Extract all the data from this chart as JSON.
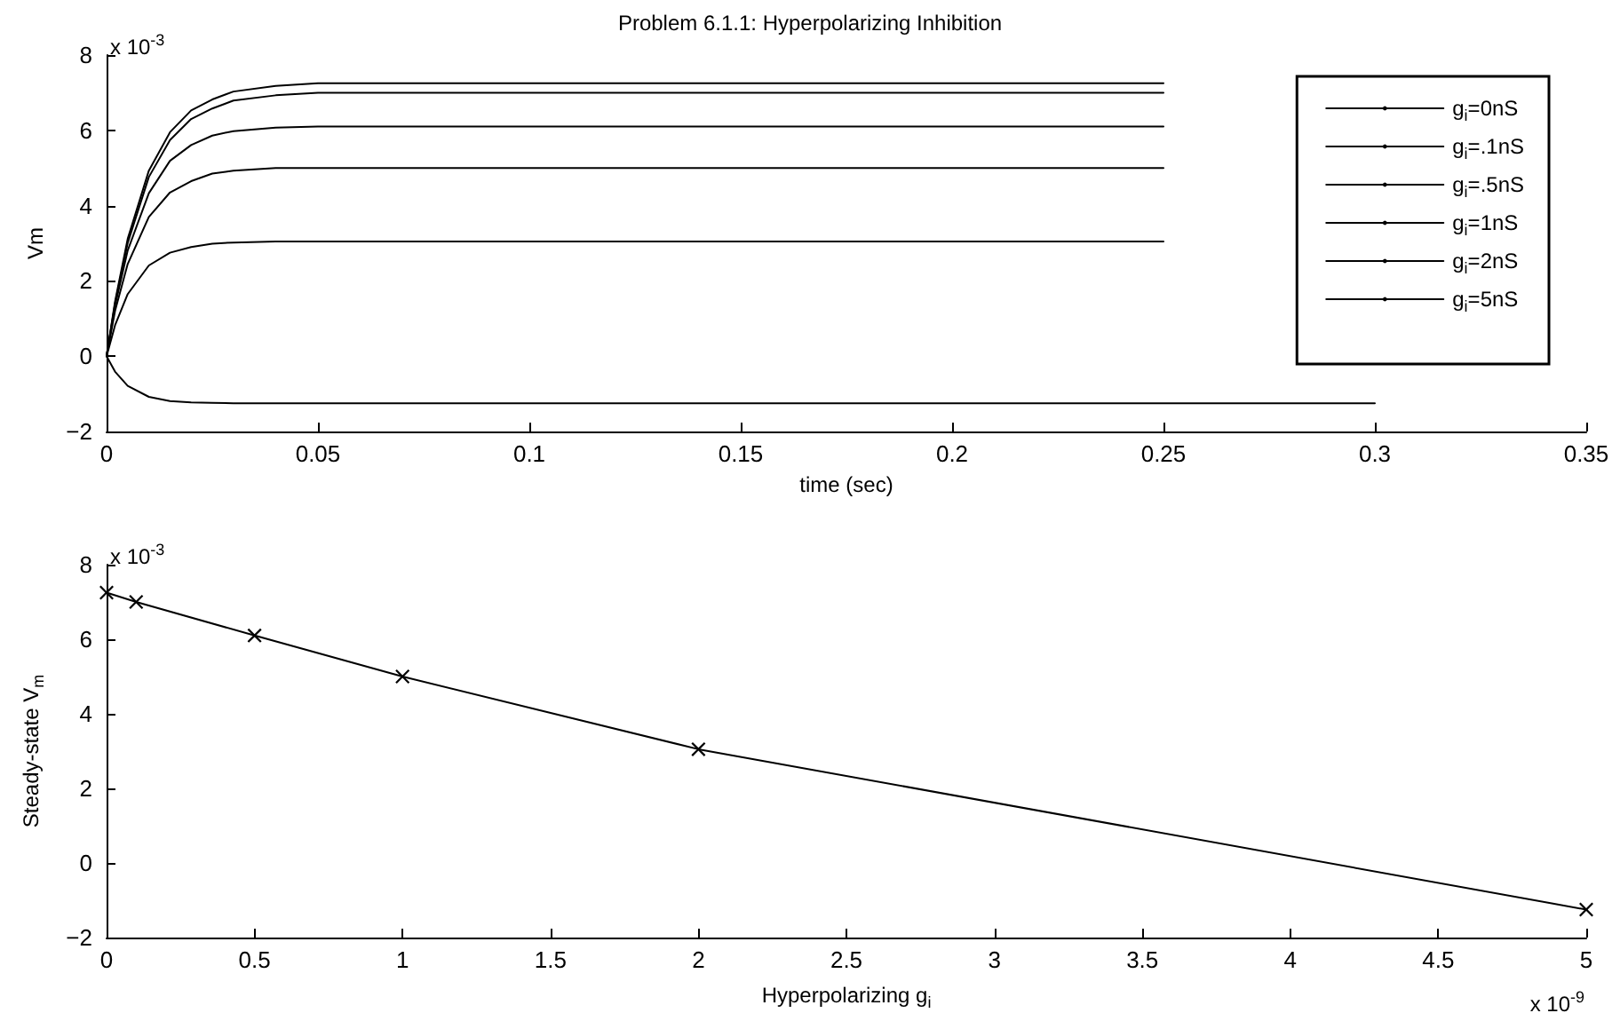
{
  "chart_data": [
    {
      "type": "line",
      "title": "Problem 6.1.1: Hyperpolarizing Inhibition",
      "xlabel": "time (sec)",
      "ylabel": "Vm",
      "x": [
        0,
        0.002,
        0.005,
        0.01,
        0.015,
        0.02,
        0.025,
        0.03,
        0.04,
        0.05,
        0.1,
        0.25,
        0.3
      ],
      "series": [
        {
          "name": "g$_{i}$=0nS",
          "color": "#000000",
          "values": [
            0,
            1.45,
            3.12,
            4.93,
            5.95,
            6.53,
            6.82,
            7.03,
            7.18,
            7.25,
            7.25,
            7.25,
            null
          ]
        },
        {
          "name": "g$_{i}$=.1nS",
          "color": "#000000",
          "values": [
            0,
            1.4,
            3.01,
            4.76,
            5.74,
            6.3,
            6.58,
            6.79,
            6.93,
            7.0,
            7.0,
            7.0,
            null
          ]
        },
        {
          "name": "g$_{i}$=.5nS",
          "color": "#000000",
          "values": [
            0,
            1.34,
            2.81,
            4.33,
            5.19,
            5.61,
            5.86,
            5.98,
            6.07,
            6.1,
            6.1,
            6.1,
            null
          ]
        },
        {
          "name": "g$_{i}$=1nS",
          "color": "#000000",
          "values": [
            0,
            1.2,
            2.45,
            3.7,
            4.35,
            4.65,
            4.85,
            4.93,
            5.0,
            5.0,
            5.0,
            5.0,
            null
          ]
        },
        {
          "name": "g$_{i}$=2nS",
          "color": "#000000",
          "values": [
            0,
            0.82,
            1.65,
            2.41,
            2.75,
            2.9,
            2.99,
            3.02,
            3.05,
            3.05,
            3.05,
            3.05,
            null
          ]
        },
        {
          "name": "g$_{i}$=5nS",
          "color": "#000000",
          "values": [
            0,
            -0.41,
            -0.79,
            -1.08,
            -1.19,
            -1.23,
            -1.24,
            -1.25,
            -1.25,
            -1.25,
            -1.25,
            -1.25,
            -1.25
          ]
        }
      ],
      "xlim": [
        0,
        0.35
      ],
      "xticks": [
        0,
        0.05,
        0.1,
        0.15,
        0.2,
        0.25,
        0.3,
        0.35
      ],
      "ylim": [
        -2,
        8
      ],
      "yticks": [
        -2,
        0,
        2,
        4,
        6,
        8
      ],
      "annotations": [
        "x 10$^{-3}$"
      ],
      "legend": "top right",
      "grid": false,
      "marker": "none",
      "line_style": "solid"
    },
    {
      "type": "line",
      "xlabel": "Hyperpolarizing g$_{i}$",
      "ylabel": "Steady-state V$_{m}$",
      "x": [
        0,
        0.1,
        0.5,
        1,
        2,
        5
      ],
      "series": [
        {
          "color": "#000000",
          "values": [
            7.25,
            7.0,
            6.1,
            5.0,
            3.05,
            -1.25
          ]
        }
      ],
      "xlim": [
        0,
        5
      ],
      "xticks": [
        0,
        0.5,
        1,
        1.5,
        2,
        2.5,
        3,
        3.5,
        4,
        4.5,
        5
      ],
      "ylim": [
        -2,
        8
      ],
      "yticks": [
        -2,
        0,
        2,
        4,
        6,
        8
      ],
      "annotations": [
        "x 10$^{-3}$",
        "x 10$^{-9}$"
      ],
      "legend": false,
      "grid": false,
      "marker": "cross",
      "line_style": "solid"
    }
  ]
}
